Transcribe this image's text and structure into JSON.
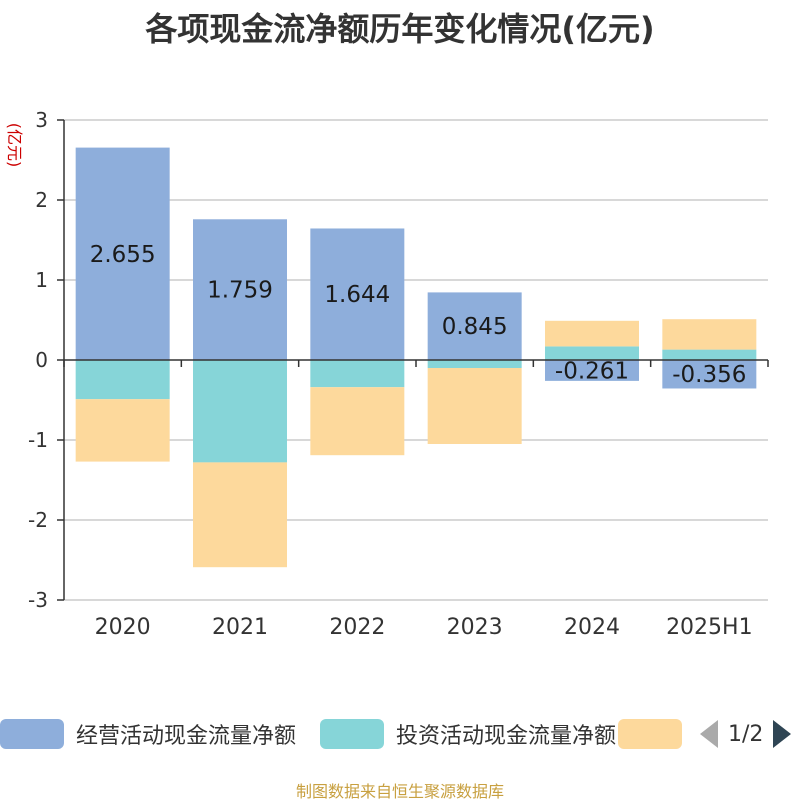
{
  "title": "各项现金流净额历年变化情况(亿元)",
  "y_unit": "(亿元)",
  "source": "制图数据来自恒生聚源数据库",
  "legend": {
    "page_text": "1/2",
    "items": [
      {
        "label": "经营活动现金流量净额",
        "color": "#8eaedb"
      },
      {
        "label": "投资活动现金流量净额",
        "color": "#86d5d8"
      },
      {
        "label": "",
        "color": "#fdd99c"
      }
    ]
  },
  "chart_data": {
    "type": "bar",
    "stacked": true,
    "categories": [
      "2020",
      "2021",
      "2022",
      "2023",
      "2024",
      "2025H1"
    ],
    "ylim": [
      -3,
      3
    ],
    "yticks": [
      3,
      2,
      1,
      0,
      -1,
      -2,
      -3
    ],
    "grid": true,
    "legend_position": "bottom",
    "series": [
      {
        "name": "经营活动现金流量净额",
        "color": "#8eaedb",
        "values": [
          2.655,
          1.759,
          1.644,
          0.845,
          -0.261,
          -0.356
        ],
        "labels": [
          "2.655",
          "1.759",
          "1.644",
          "0.845",
          "-0.261",
          "-0.356"
        ]
      },
      {
        "name": "投资活动现金流量净额",
        "color": "#86d5d8",
        "values": [
          -0.49,
          -1.28,
          -0.34,
          -0.1,
          0.17,
          0.13
        ]
      },
      {
        "name": "",
        "color": "#fdd99c",
        "values": [
          -0.78,
          -1.31,
          -0.85,
          -0.95,
          0.32,
          0.38
        ]
      }
    ]
  }
}
